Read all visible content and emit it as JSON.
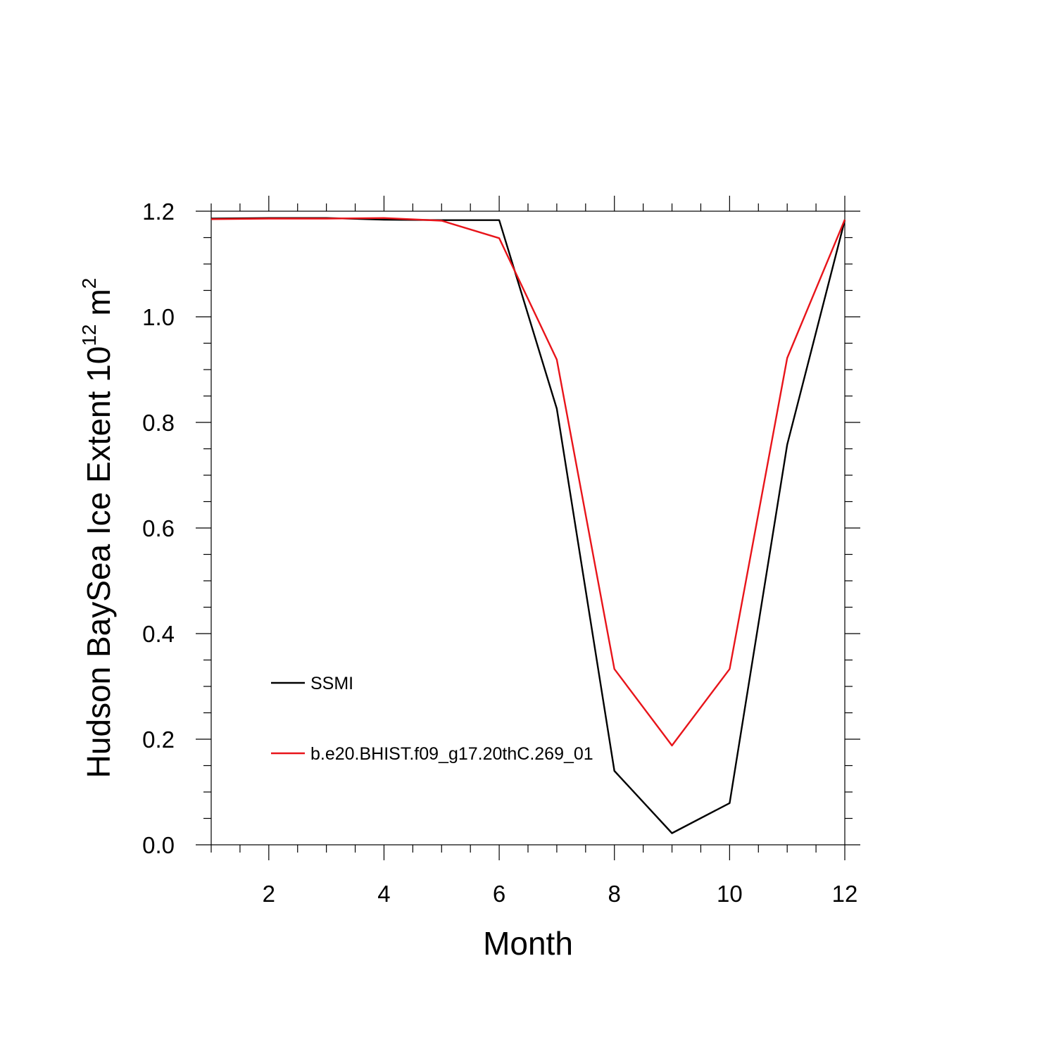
{
  "chart_data": {
    "type": "line",
    "xlabel": "Month",
    "ylabel": "Hudson BaySea Ice Extent 10",
    "ylabel_superscript": "12",
    "ylabel_unit": "m",
    "ylabel_unit_superscript": "2",
    "xlim": [
      1,
      12
    ],
    "ylim": [
      0,
      1.2
    ],
    "x_ticks": [
      2,
      4,
      6,
      8,
      10,
      12
    ],
    "x_tick_labels": [
      "2",
      "4",
      "6",
      "8",
      "10",
      "12"
    ],
    "y_ticks": [
      0,
      0.2,
      0.4,
      0.6,
      0.8,
      1.0,
      1.2
    ],
    "y_tick_labels": [
      "0.0",
      "0.2",
      "0.4",
      "0.6",
      "0.8",
      "1.0",
      "1.2"
    ],
    "grid": false,
    "legend_placement": "lower-left",
    "x": [
      1,
      2,
      3,
      4,
      5,
      6,
      7,
      8,
      9,
      10,
      11,
      12
    ],
    "series": [
      {
        "name": "SSMI",
        "color": "#000000",
        "values": [
          1.186,
          1.187,
          1.187,
          1.184,
          1.183,
          1.183,
          0.826,
          0.14,
          0.022,
          0.079,
          0.758,
          1.183
        ]
      },
      {
        "name": "b.e20.BHIST.f09_g17.20thC.269_01",
        "color": "#e8141a",
        "values": [
          1.185,
          1.186,
          1.186,
          1.187,
          1.182,
          1.149,
          0.919,
          0.333,
          0.188,
          0.333,
          0.922,
          1.184
        ]
      }
    ]
  }
}
